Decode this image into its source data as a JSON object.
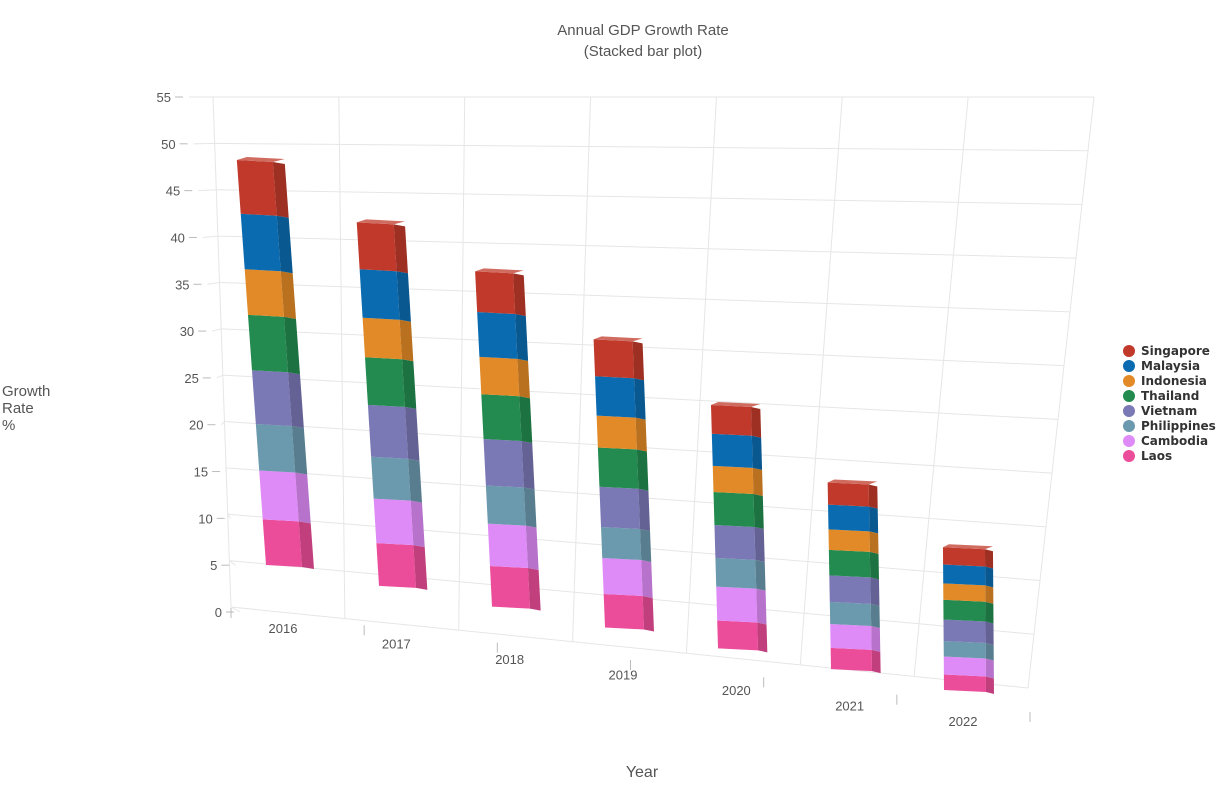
{
  "chart_data": {
    "type": "bar",
    "stacked": true,
    "title": "Annual GDP Growth Rate",
    "subtitle": "(Stacked bar plot)",
    "xlabel": "Year",
    "ylabel": [
      "Growth",
      "Rate",
      "%"
    ],
    "categories": [
      "2016",
      "2017",
      "2018",
      "2019",
      "2020",
      "2021",
      "2022"
    ],
    "y_ticks": [
      0,
      5,
      10,
      15,
      20,
      25,
      30,
      35,
      40,
      45,
      50,
      55
    ],
    "ylim": [
      0,
      55
    ],
    "grid": true,
    "legend_position": "right",
    "series": [
      {
        "name": "Laos",
        "color": "#ec4d9a",
        "values": [
          5.6,
          5.2,
          4.9,
          4.0,
          3.3,
          2.5,
          1.8
        ]
      },
      {
        "name": "Cambodia",
        "color": "#df8bf7",
        "values": [
          6.0,
          5.4,
          5.1,
          4.3,
          4.0,
          2.8,
          2.1
        ]
      },
      {
        "name": "Philippines",
        "color": "#6b99ad",
        "values": [
          5.7,
          5.1,
          4.6,
          3.7,
          3.4,
          2.6,
          1.8
        ]
      },
      {
        "name": "Vietnam",
        "color": "#7a78b5",
        "values": [
          6.6,
          6.3,
          5.6,
          4.8,
          3.9,
          3.1,
          2.5
        ]
      },
      {
        "name": "Thailand",
        "color": "#238b4f",
        "values": [
          6.8,
          5.8,
          5.4,
          4.7,
          3.9,
          3.0,
          2.3
        ]
      },
      {
        "name": "Indonesia",
        "color": "#e28a27",
        "values": [
          5.6,
          4.8,
          4.5,
          3.8,
          3.1,
          2.4,
          1.9
        ]
      },
      {
        "name": "Malaysia",
        "color": "#0b6bb0",
        "values": [
          6.8,
          5.9,
          5.4,
          4.7,
          3.8,
          2.9,
          2.2
        ]
      },
      {
        "name": "Singapore",
        "color": "#c0392b",
        "values": [
          6.6,
          5.7,
          4.9,
          4.4,
          3.4,
          2.6,
          2.0
        ]
      }
    ]
  }
}
